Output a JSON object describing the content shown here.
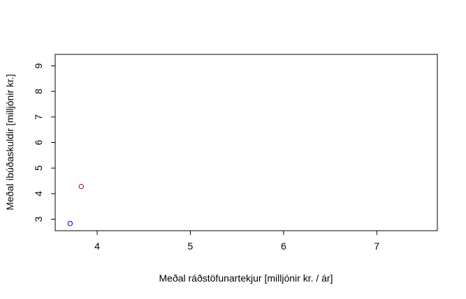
{
  "chart_data": {
    "type": "scatter",
    "xlabel": "Meðal ráðstöfunartekjur [milljónir kr. / ár]",
    "ylabel": "Meðal íbúðaskuldir [milljónir kr.]",
    "xlim": [
      3.55,
      7.65
    ],
    "ylim": [
      2.55,
      9.45
    ],
    "xticks": [
      "4",
      "5",
      "6",
      "7"
    ],
    "yticks": [
      "3",
      "4",
      "5",
      "6",
      "7",
      "8",
      "9"
    ],
    "grid": false,
    "legend": "none",
    "points": [
      {
        "x": 3.71,
        "y": 2.83,
        "color": "#0000cc"
      },
      {
        "x": 3.83,
        "y": 4.28,
        "color": "#b00020"
      }
    ]
  }
}
